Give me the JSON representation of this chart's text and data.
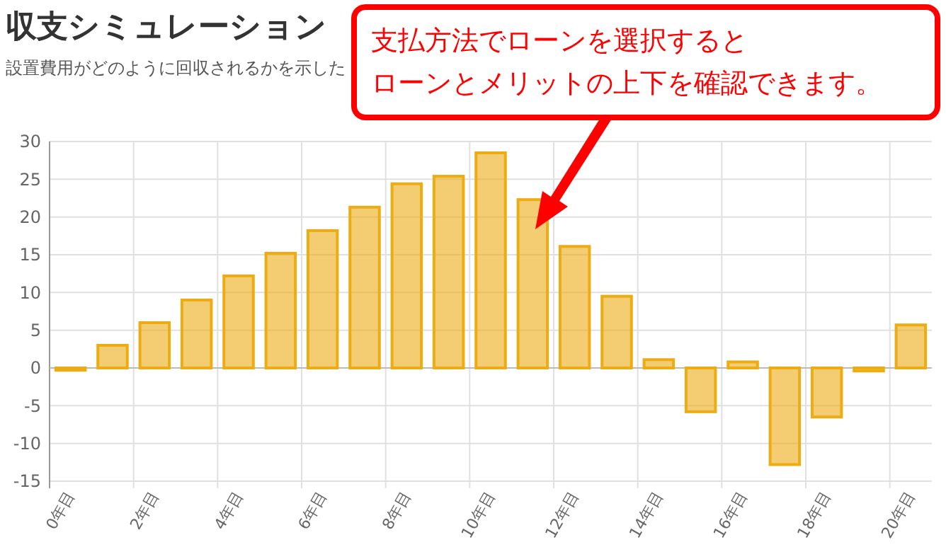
{
  "chart_data": {
    "type": "bar",
    "title": "収支シミュレーション",
    "subtitle": "設置費用がどのように回収されるかを示した",
    "annotations": [
      "支払方法でローンを選択すると",
      "ローンとメリットの上下を確認できます。"
    ],
    "categories": [
      "0年目",
      null,
      "2年目",
      null,
      "4年目",
      null,
      "6年目",
      null,
      "8年目",
      null,
      "10年目",
      null,
      "12年目",
      null,
      "14年目",
      null,
      "16年目",
      null,
      "18年目",
      null,
      "20年目"
    ],
    "values": [
      -0.3,
      3,
      6,
      9,
      12.2,
      15.2,
      18.2,
      21.3,
      24.4,
      25.4,
      28.5,
      22.3,
      16.1,
      9.5,
      1.1,
      -5.8,
      0.8,
      -12.8,
      -6.5,
      -0.4,
      5.7
    ],
    "color": "#ecac14",
    "ylim": [
      -15,
      30
    ],
    "yticks": [
      -15,
      -10,
      -5,
      0,
      5,
      10,
      15,
      20,
      25,
      30
    ],
    "grid": true
  }
}
